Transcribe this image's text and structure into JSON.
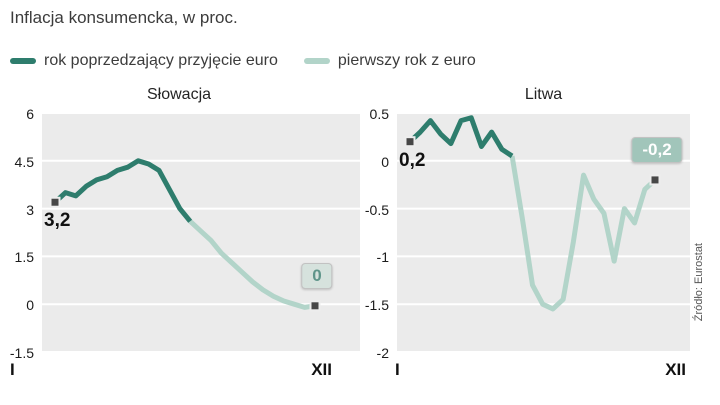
{
  "page": {
    "title": "Inflacja konsumencka, w proc.",
    "source": "Źródło: Eurostat"
  },
  "legend": [
    {
      "label": "rok poprzedzający przyjęcie euro",
      "color": "#2e7d6d"
    },
    {
      "label": "pierwszy rok z euro",
      "color": "#b2d4c9"
    }
  ],
  "colors": {
    "dark": "#2e7d6d",
    "light": "#b2d4c9",
    "plot_bg": "#ebebeb",
    "grid": "#ffffff",
    "marker": "#474747"
  },
  "chart_data": [
    {
      "type": "line",
      "title": "Słowacja",
      "ylim": [
        -1.5,
        6
      ],
      "yticks": [
        6,
        4.5,
        3,
        1.5,
        0,
        -1.5
      ],
      "ytick_labels": [
        "6",
        "4.5",
        "3",
        "1.5",
        "0",
        "-1.5"
      ],
      "xtick_labels": [
        "I",
        "XII"
      ],
      "series": [
        {
          "name": "rok poprzedzający przyjęcie euro",
          "values": [
            3.2,
            3.5,
            3.4,
            3.7,
            3.9,
            4.0,
            4.2,
            4.3,
            4.5,
            4.4,
            4.2,
            3.6,
            3.0,
            2.6
          ]
        },
        {
          "name": "pierwszy rok z euro",
          "values": [
            2.6,
            2.3,
            2.0,
            1.6,
            1.3,
            1.0,
            0.7,
            0.45,
            0.25,
            0.1,
            0.0,
            -0.1,
            -0.05
          ]
        }
      ],
      "start_label": "3,2",
      "end_badge": {
        "text": "0",
        "bg": "#d6e2dd",
        "color": "#5f958a"
      }
    },
    {
      "type": "line",
      "title": "Litwa",
      "ylim": [
        -2,
        0.5
      ],
      "yticks": [
        0.5,
        0,
        -0.5,
        -1,
        -1.5,
        -2
      ],
      "ytick_labels": [
        "0.5",
        "0",
        "-0.5",
        "-1",
        "-1.5",
        "-2"
      ],
      "xtick_labels": [
        "I",
        "XII"
      ],
      "series": [
        {
          "name": "rok poprzedzający przyjęcie euro",
          "values": [
            0.2,
            0.3,
            0.42,
            0.28,
            0.18,
            0.42,
            0.45,
            0.15,
            0.3,
            0.12,
            0.05
          ]
        },
        {
          "name": "pierwszy rok z euro",
          "values": [
            0.05,
            -0.6,
            -1.3,
            -1.5,
            -1.55,
            -1.45,
            -0.85,
            -0.15,
            -0.4,
            -0.55,
            -1.05,
            -0.5,
            -0.65,
            -0.3,
            -0.2
          ]
        }
      ],
      "start_label": "0,2",
      "end_badge": {
        "text": "-0,2",
        "bg": "#a1c5ba",
        "color": "#ffffff"
      }
    }
  ]
}
